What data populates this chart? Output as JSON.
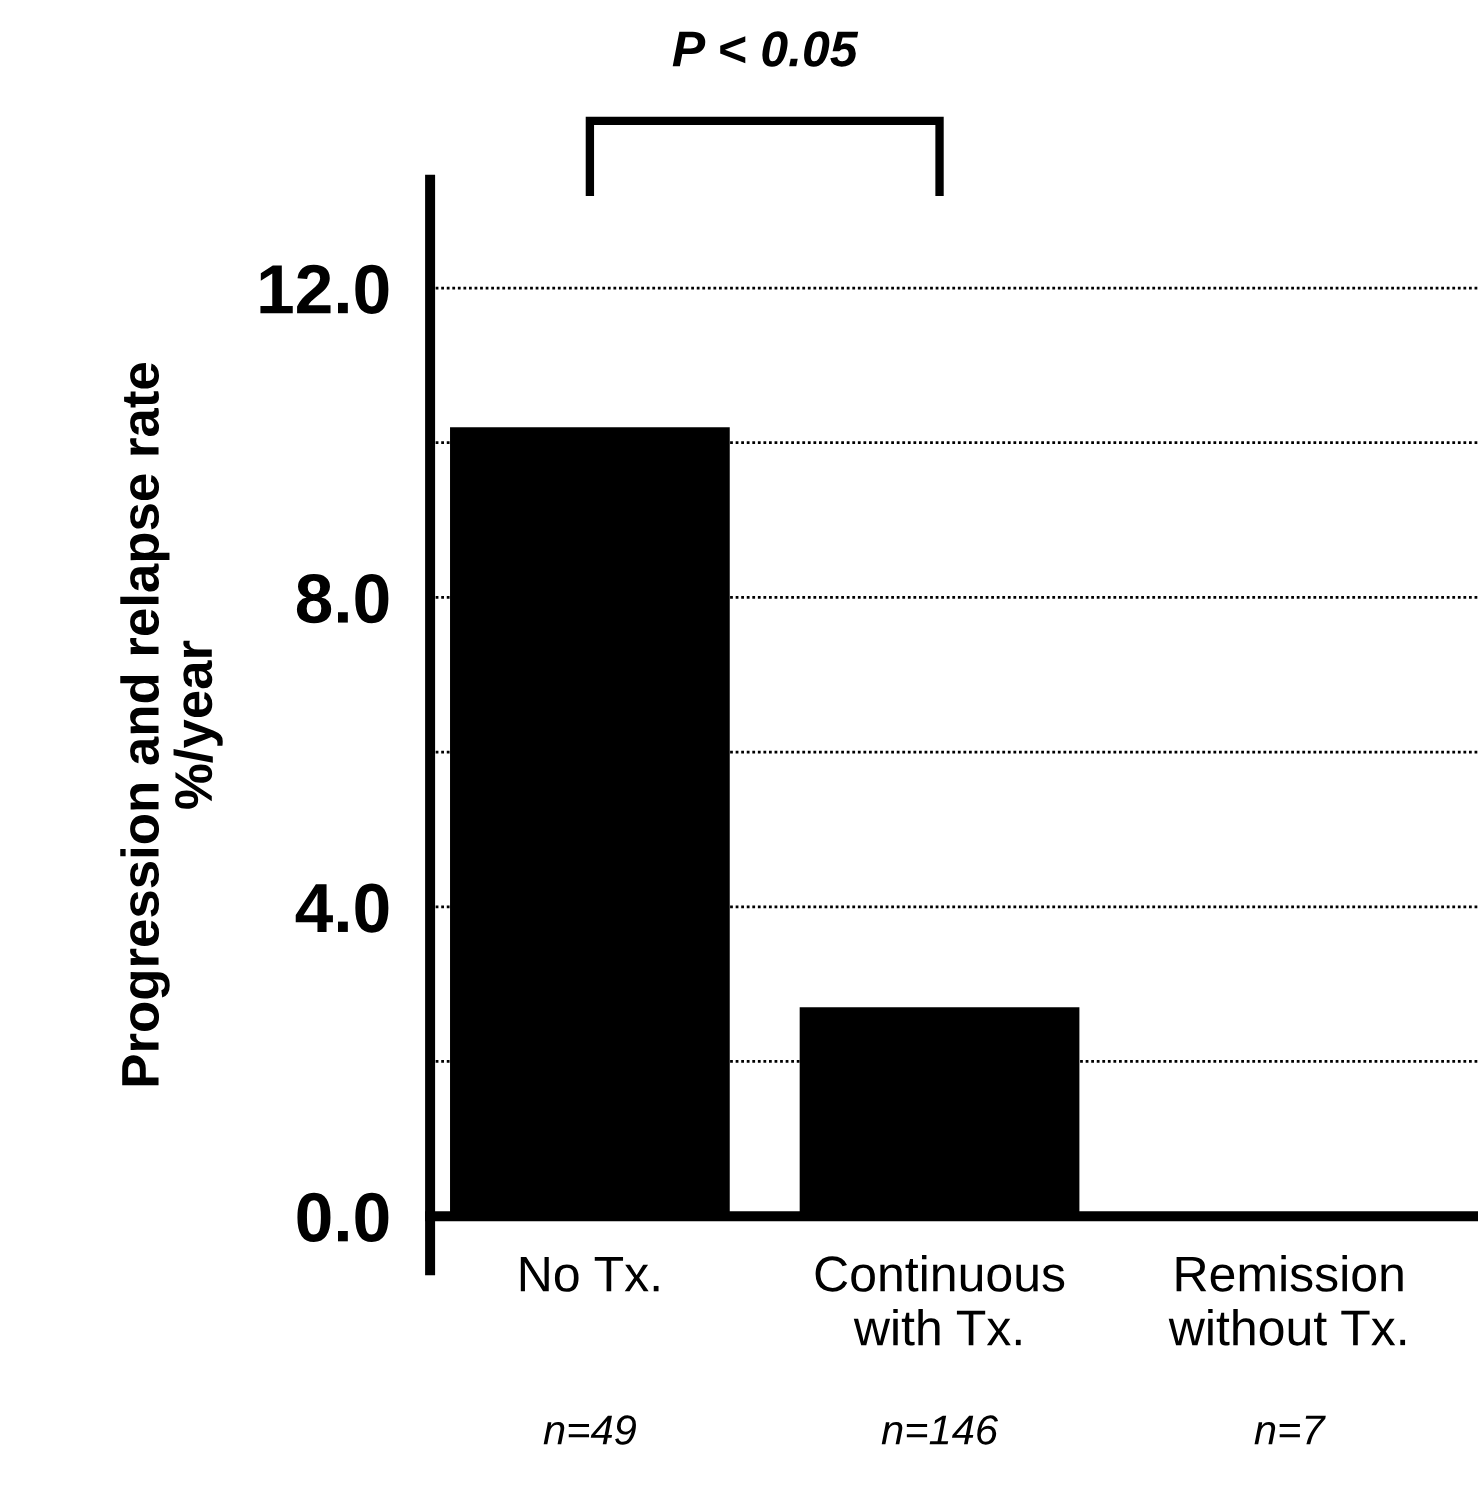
{
  "chart_data": {
    "type": "bar",
    "ylabel": "Progression and relapse rate\n%/year",
    "categories": [
      "No Tx.",
      "Continuous\nwith Tx.",
      "Remission\nwithout Tx."
    ],
    "values": [
      10.2,
      2.7,
      0
    ],
    "color": "#000000",
    "ylim": [
      -0.7,
      13.4
    ],
    "yticks": [
      {
        "value": 0,
        "label": "0.0"
      },
      {
        "value": 2,
        "label": null
      },
      {
        "value": 4,
        "label": "4.0"
      },
      {
        "value": 6,
        "label": null
      },
      {
        "value": 8,
        "label": "8.0"
      },
      {
        "value": 10,
        "label": null
      },
      {
        "value": 12,
        "label": "12.0"
      }
    ],
    "grid": "y",
    "annotations": [
      "P < 0.05",
      "n=49",
      "n=146",
      "n=7"
    ]
  }
}
